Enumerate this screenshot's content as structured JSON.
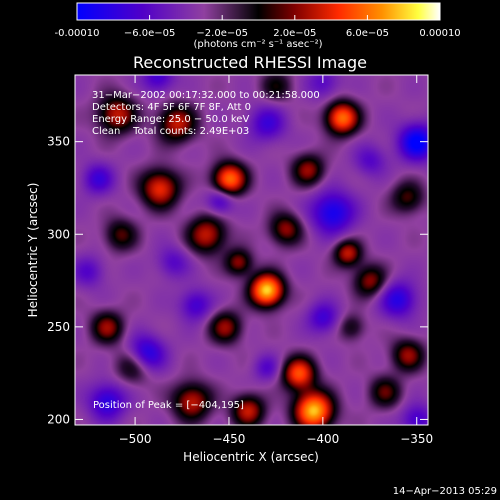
{
  "chart_data": {
    "type": "heatmap",
    "title": "Reconstructed RHESSI Image",
    "xlabel": "Heliocentric X (arcsec)",
    "ylabel": "Heliocentric Y (arcsec)",
    "xlim": [
      -532,
      -344
    ],
    "ylim": [
      197,
      386
    ],
    "x_ticks": [
      -500,
      -450,
      -400,
      -350
    ],
    "x_tick_labels": [
      "−500",
      "−450",
      "−400",
      "−350"
    ],
    "y_ticks": [
      200,
      250,
      300,
      350
    ],
    "y_tick_labels": [
      "200",
      "250",
      "300",
      "350"
    ],
    "colorbar": {
      "range": [
        -0.0001,
        0.0001
      ],
      "ticks": [
        -0.0001,
        -6e-05,
        -2e-05,
        2e-05,
        6e-05,
        0.0001
      ],
      "tick_labels": [
        "-0.00010",
        "−6.0e−05",
        "−2.0e−05",
        "2.0e−05",
        "6.0e−05",
        "0.00010"
      ],
      "unit_label": "(photons cm⁻² s⁻¹ asec⁻²)",
      "colormap": [
        "#0000ff",
        "#5000c8",
        "#9040a0",
        "#000000",
        "#800000",
        "#ff2a00",
        "#ff9000",
        "#ffff40",
        "#ffffff"
      ]
    },
    "annotations": [
      "31−Mar−2002 00:17:32.000 to 00:21:58.000",
      "Detectors: 4F 5F 6F 7F 8F, Att 0",
      "Energy Range: 25.0 − 50.0 keV",
      "Clean    Total counts: 2.49E+03"
    ],
    "peak_label": "Position of Peak = [−404,195]",
    "peak": {
      "x": -404,
      "y": 195
    },
    "sources": [
      {
        "x": -430,
        "y": 270,
        "v": 0.000115,
        "s": 6
      },
      {
        "x": -405,
        "y": 205,
        "v": 0.00011,
        "s": 7
      },
      {
        "x": -413,
        "y": 225,
        "v": 8e-05,
        "s": 6
      },
      {
        "x": -450,
        "y": 330,
        "v": 9e-05,
        "s": 6
      },
      {
        "x": -462,
        "y": 300,
        "v": 6e-05,
        "s": 7
      },
      {
        "x": -390,
        "y": 363,
        "v": 9e-05,
        "s": 6
      },
      {
        "x": -408,
        "y": 335,
        "v": 5e-05,
        "s": 6
      },
      {
        "x": -510,
        "y": 365,
        "v": 6e-05,
        "s": 7
      },
      {
        "x": -478,
        "y": 360,
        "v": 6e-05,
        "s": 7
      },
      {
        "x": -487,
        "y": 325,
        "v": 7e-05,
        "s": 7
      },
      {
        "x": -508,
        "y": 300,
        "v": 4e-05,
        "s": 6
      },
      {
        "x": -500,
        "y": 230,
        "v": 5e-05,
        "s": 7
      },
      {
        "x": -515,
        "y": 250,
        "v": 5e-05,
        "s": 6
      },
      {
        "x": -452,
        "y": 250,
        "v": 5e-05,
        "s": 6
      },
      {
        "x": -470,
        "y": 210,
        "v": 6e-05,
        "s": 7
      },
      {
        "x": -440,
        "y": 205,
        "v": 6e-05,
        "s": 6
      },
      {
        "x": -420,
        "y": 303,
        "v": 5e-05,
        "s": 6
      },
      {
        "x": -445,
        "y": 285,
        "v": 5e-05,
        "s": 5
      },
      {
        "x": -375,
        "y": 275,
        "v": 5e-05,
        "s": 6
      },
      {
        "x": -387,
        "y": 290,
        "v": 6e-05,
        "s": 5
      },
      {
        "x": -355,
        "y": 235,
        "v": 5e-05,
        "s": 6
      },
      {
        "x": -367,
        "y": 215,
        "v": 4e-05,
        "s": 6
      },
      {
        "x": -355,
        "y": 320,
        "v": 4e-05,
        "s": 6
      },
      {
        "x": -425,
        "y": 380,
        "v": 3e-05,
        "s": 6
      },
      {
        "x": -385,
        "y": 250,
        "v": 3e-05,
        "s": 5
      },
      {
        "x": -495,
        "y": 235,
        "v": -7e-05,
        "s": 7
      },
      {
        "x": -350,
        "y": 350,
        "v": -7e-05,
        "s": 7
      },
      {
        "x": -395,
        "y": 312,
        "v": -6e-05,
        "s": 8
      },
      {
        "x": -515,
        "y": 210,
        "v": -5e-05,
        "s": 7
      },
      {
        "x": -468,
        "y": 262,
        "v": -4e-05,
        "s": 6
      },
      {
        "x": -430,
        "y": 360,
        "v": -4e-05,
        "s": 7
      },
      {
        "x": -360,
        "y": 265,
        "v": -5e-05,
        "s": 7
      },
      {
        "x": -455,
        "y": 318,
        "v": -4e-05,
        "s": 5
      },
      {
        "x": -400,
        "y": 255,
        "v": -4e-05,
        "s": 6
      },
      {
        "x": -520,
        "y": 330,
        "v": -4e-05,
        "s": 6
      },
      {
        "x": -350,
        "y": 200,
        "v": -4e-05,
        "s": 6
      },
      {
        "x": -488,
        "y": 385,
        "v": -4e-05,
        "s": 6
      },
      {
        "x": -400,
        "y": 382,
        "v": -3e-05,
        "s": 6
      },
      {
        "x": -430,
        "y": 228,
        "v": -3e-05,
        "s": 5
      },
      {
        "x": -375,
        "y": 340,
        "v": -3e-05,
        "s": 6
      },
      {
        "x": -480,
        "y": 285,
        "v": -3e-05,
        "s": 6
      },
      {
        "x": -525,
        "y": 280,
        "v": -3e-05,
        "s": 6
      }
    ]
  },
  "timestamp": "14−Apr−2013 05:29"
}
